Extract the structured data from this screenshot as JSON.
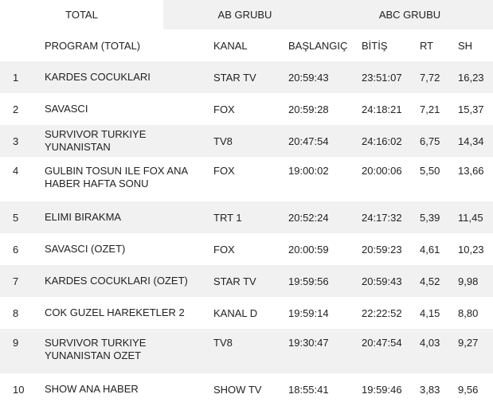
{
  "tabs": [
    "TOTAL",
    "AB GRUBU",
    "ABC GRUBU"
  ],
  "columns": {
    "program": "PROGRAM (TOTAL)",
    "kanal": "KANAL",
    "baslangic": "BAŞLANGIÇ",
    "bitis": "BİTİŞ",
    "rt": "RT",
    "sh": "SH"
  },
  "rows": [
    {
      "no": "1",
      "program": "KARDES COCUKLARI",
      "kanal": "STAR TV",
      "baslangic": "20:59:43",
      "bitis": "23:51:07",
      "rt": "7,72",
      "sh": "16,23"
    },
    {
      "no": "2",
      "program": "SAVASCI",
      "kanal": "FOX",
      "baslangic": "20:59:28",
      "bitis": "24:18:21",
      "rt": "7,21",
      "sh": "15,37"
    },
    {
      "no": "3",
      "program": "SURVIVOR TURKIYE YUNANISTAN",
      "kanal": "TV8",
      "baslangic": "20:47:54",
      "bitis": "24:16:02",
      "rt": "6,75",
      "sh": "14,34"
    },
    {
      "no": "4",
      "program": "GULBIN TOSUN ILE FOX ANA HABER HAFTA SONU",
      "kanal": "FOX",
      "baslangic": "19:00:02",
      "bitis": "20:00:06",
      "rt": "5,50",
      "sh": "13,66"
    },
    {
      "no": "5",
      "program": "ELIMI BIRAKMA",
      "kanal": "TRT 1",
      "baslangic": "20:52:24",
      "bitis": "24:17:32",
      "rt": "5,39",
      "sh": "11,45"
    },
    {
      "no": "6",
      "program": "SAVASCI (OZET)",
      "kanal": "FOX",
      "baslangic": "20:00:59",
      "bitis": "20:59:23",
      "rt": "4,61",
      "sh": "10,23"
    },
    {
      "no": "7",
      "program": "KARDES COCUKLARI (OZET)",
      "kanal": "STAR TV",
      "baslangic": "19:59:56",
      "bitis": "20:59:43",
      "rt": "4,52",
      "sh": "9,98"
    },
    {
      "no": "8",
      "program": "COK GUZEL HAREKETLER 2",
      "kanal": "KANAL D",
      "baslangic": "19:59:14",
      "bitis": "22:22:52",
      "rt": "4,15",
      "sh": "8,80"
    },
    {
      "no": "9",
      "program": "SURVIVOR TURKIYE YUNANISTAN OZET",
      "kanal": "TV8",
      "baslangic": "19:30:47",
      "bitis": "20:47:54",
      "rt": "4,03",
      "sh": "9,27"
    },
    {
      "no": "10",
      "program": "SHOW ANA HABER",
      "kanal": "SHOW TV",
      "baslangic": "18:55:41",
      "bitis": "19:59:46",
      "rt": "3,83",
      "sh": "9,56"
    }
  ]
}
